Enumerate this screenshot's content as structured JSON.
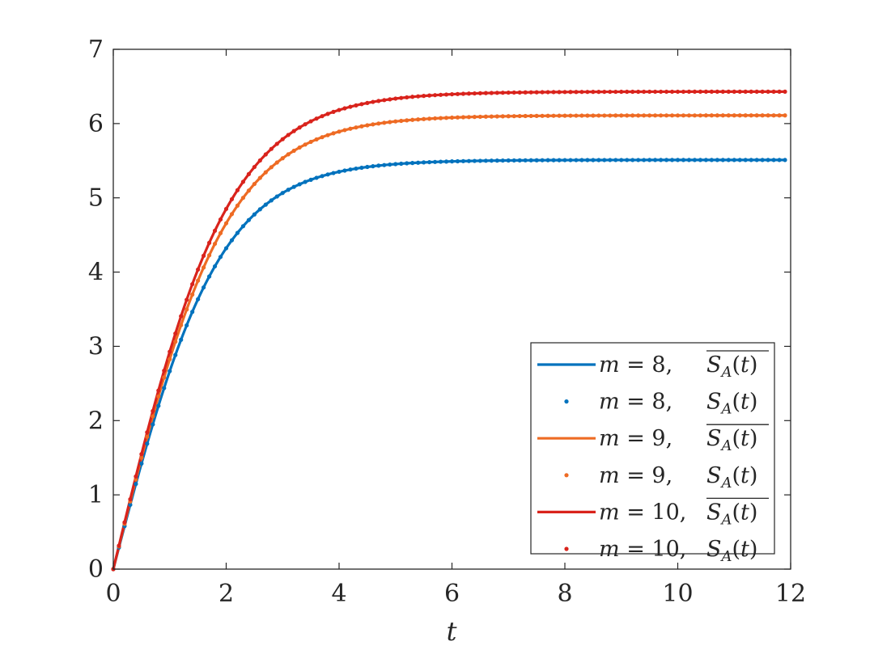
{
  "chart_data": {
    "type": "line",
    "xlabel": "t",
    "ylabel": "",
    "xlim": [
      0,
      12
    ],
    "ylim": [
      0,
      7
    ],
    "xticks": [
      "0",
      "2",
      "4",
      "6",
      "8",
      "10",
      "12"
    ],
    "yticks": [
      "0",
      "1",
      "2",
      "3",
      "4",
      "5",
      "6",
      "7"
    ],
    "grid": false,
    "legend_position": "bottom-right",
    "colors": {
      "m8": "#0072BD",
      "m9": "#EE6B24",
      "m10": "#D9231C"
    },
    "series": [
      {
        "name": "m = 8,  S_A(t) (mean)",
        "style": "line",
        "color": "#0072BD",
        "m": "8",
        "saturation": 5.51,
        "rate": 2.91,
        "max_t": 11.9
      },
      {
        "name": "m = 8,  S_A(t)",
        "style": "dots",
        "color": "#0072BD",
        "m": "8",
        "saturation": 5.51,
        "rate": 2.91,
        "max_t": 11.9,
        "step": 0.1
      },
      {
        "name": "m = 9,  S_A(t) (mean)",
        "style": "line",
        "color": "#EE6B24",
        "m": "9",
        "saturation": 6.11,
        "rate": 3.06,
        "max_t": 11.9
      },
      {
        "name": "m = 9,  S_A(t)",
        "style": "dots",
        "color": "#EE6B24",
        "m": "9",
        "saturation": 6.11,
        "rate": 3.06,
        "max_t": 11.9,
        "step": 0.1
      },
      {
        "name": "m = 10, S_A(t) (mean)",
        "style": "line",
        "color": "#D9231C",
        "m": "10",
        "saturation": 6.43,
        "rate": 3.16,
        "max_t": 11.9
      },
      {
        "name": "m = 10, S_A(t)",
        "style": "dots",
        "color": "#D9231C",
        "m": "10",
        "saturation": 6.43,
        "rate": 3.16,
        "max_t": 11.9,
        "step": 0.1
      }
    ],
    "legend": [
      {
        "m_value": "8,",
        "overline": true
      },
      {
        "m_value": "8,",
        "overline": false
      },
      {
        "m_value": "9,",
        "overline": true
      },
      {
        "m_value": "9,",
        "overline": false
      },
      {
        "m_value": "10,",
        "overline": true
      },
      {
        "m_value": "10,",
        "overline": false
      }
    ]
  }
}
